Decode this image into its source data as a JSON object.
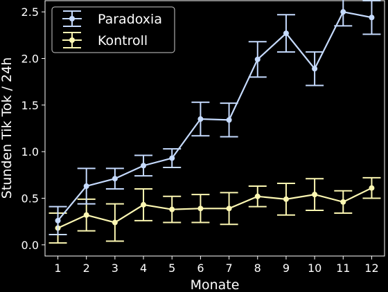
{
  "chart_data": {
    "type": "line",
    "xlabel": "Monate",
    "ylabel": "Stunden Tik Tok / 24h",
    "x": [
      1,
      2,
      3,
      4,
      5,
      6,
      7,
      8,
      9,
      10,
      11,
      12
    ],
    "xlim": [
      0.55,
      12.45
    ],
    "ylim": [
      -0.12,
      2.62
    ],
    "yticks": [
      0.0,
      0.5,
      1.0,
      1.5,
      2.0,
      2.5
    ],
    "ytick_labels": [
      "0.0",
      "0.5",
      "1.0",
      "1.5",
      "2.0",
      "2.5"
    ],
    "xtick_labels": [
      "1",
      "2",
      "3",
      "4",
      "5",
      "6",
      "7",
      "8",
      "9",
      "10",
      "11",
      "12"
    ],
    "grid": false,
    "legend_position": "top-left",
    "series": [
      {
        "name": "Paradoxia",
        "color": "#c6dbff",
        "values": [
          0.26,
          0.63,
          0.71,
          0.85,
          0.93,
          1.35,
          1.34,
          1.99,
          2.27,
          1.89,
          2.5,
          2.44
        ],
        "errors": [
          0.15,
          0.19,
          0.11,
          0.11,
          0.1,
          0.18,
          0.18,
          0.19,
          0.2,
          0.18,
          0.15,
          0.18
        ]
      },
      {
        "name": "Kontroll",
        "color": "#fdf8b3",
        "values": [
          0.18,
          0.32,
          0.24,
          0.43,
          0.38,
          0.39,
          0.39,
          0.52,
          0.49,
          0.54,
          0.46,
          0.61
        ],
        "errors": [
          0.16,
          0.17,
          0.2,
          0.17,
          0.14,
          0.15,
          0.17,
          0.11,
          0.17,
          0.17,
          0.12,
          0.11
        ]
      }
    ]
  }
}
